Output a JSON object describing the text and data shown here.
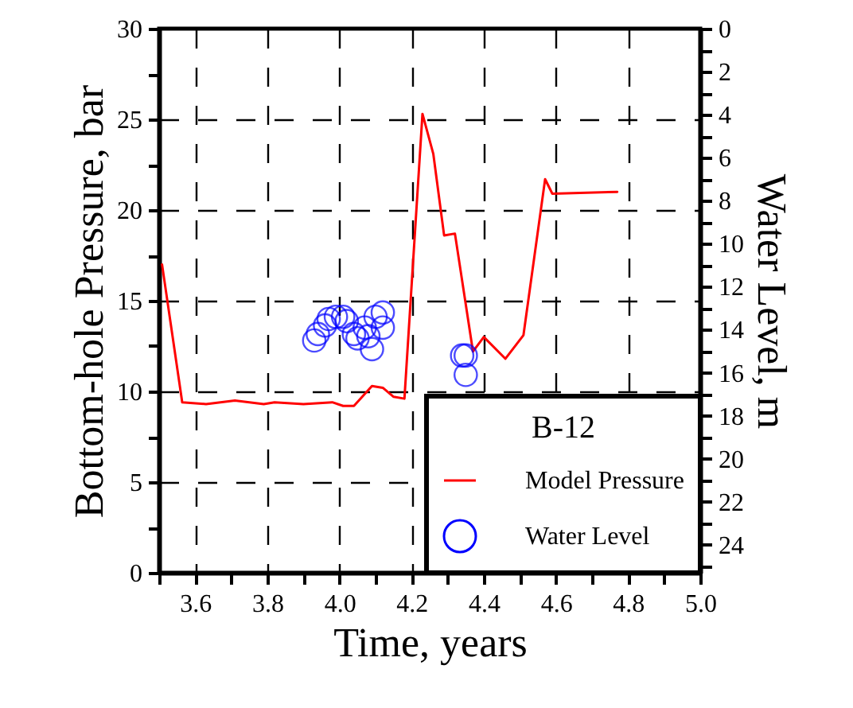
{
  "chart_data": {
    "type": "line",
    "xlabel": "Time, years",
    "ylabel": "Bottom-hole Pressure, bar",
    "y2label": "Water Level, m",
    "legend_title": "B-12",
    "legend": "bottom right",
    "grid": true,
    "xlim": [
      3.5,
      5.0
    ],
    "xticks": [
      {
        "value": 3.5,
        "label": null
      },
      3.6,
      {
        "value": 3.7,
        "label": null
      },
      3.8,
      {
        "value": 3.9,
        "label": null
      },
      {
        "value": 4.0,
        "label": "4.0"
      },
      {
        "value": 4.1,
        "label": null
      },
      4.2,
      {
        "value": 4.3,
        "label": null
      },
      4.4,
      {
        "value": 4.5,
        "label": null
      },
      4.6,
      {
        "value": 4.7,
        "label": null
      },
      4.8,
      {
        "value": 4.9,
        "label": null
      },
      {
        "value": 5.0,
        "label": "5.0"
      }
    ],
    "ylim": [
      0,
      30
    ],
    "yticks": [
      0,
      {
        "value": 2.5,
        "label": null
      },
      5,
      {
        "value": 7.5,
        "label": null
      },
      10,
      {
        "value": 12.5,
        "label": null
      },
      15,
      {
        "value": 17.5,
        "label": null
      },
      20,
      {
        "value": 22.5,
        "label": null
      },
      25,
      {
        "value": 27.5,
        "label": null
      },
      30
    ],
    "y2lim": [
      25.3,
      0
    ],
    "y2ticks": [
      0,
      {
        "value": 1,
        "label": null
      },
      2,
      {
        "value": 3,
        "label": null
      },
      4,
      {
        "value": 5,
        "label": null
      },
      6,
      {
        "value": 7,
        "label": null
      },
      8,
      {
        "value": 9,
        "label": null
      },
      10,
      {
        "value": 11,
        "label": null
      },
      12,
      {
        "value": 13,
        "label": null
      },
      14,
      {
        "value": 15,
        "label": null
      },
      16,
      {
        "value": 17,
        "label": null
      },
      18,
      {
        "value": 19,
        "label": null
      },
      20,
      {
        "value": 21,
        "label": null
      },
      22,
      {
        "value": 23,
        "label": null
      },
      24,
      {
        "value": 25,
        "label": null
      }
    ],
    "series": [
      {
        "name": "Model Pressure",
        "type": "line",
        "color": "#ff0000",
        "marker": "none",
        "line_style": "solid",
        "x": [
          3.508,
          3.564,
          3.63,
          3.71,
          3.79,
          3.82,
          3.9,
          3.98,
          4.01,
          4.04,
          4.09,
          4.12,
          4.15,
          4.18,
          4.23,
          4.26,
          4.29,
          4.32,
          4.37,
          4.4,
          4.46,
          4.51,
          4.57,
          4.59,
          4.77
        ],
        "values": [
          17.0,
          9.4,
          9.3,
          9.5,
          9.3,
          9.4,
          9.3,
          9.4,
          9.2,
          9.2,
          10.3,
          10.2,
          9.7,
          9.6,
          25.3,
          23.1,
          18.6,
          18.7,
          12.2,
          13.0,
          11.8,
          13.1,
          21.7,
          20.9,
          21.0
        ]
      },
      {
        "name": "Water Level",
        "type": "scatter",
        "axis": "y2",
        "color": "#0000ff",
        "marker": "circle",
        "x": [
          3.93,
          3.94,
          3.96,
          3.97,
          3.99,
          4.01,
          4.02,
          4.04,
          4.05,
          4.07,
          4.08,
          4.09,
          4.1,
          4.12,
          4.12,
          4.34,
          4.35,
          4.35
        ],
        "values": [
          14.5,
          14.2,
          13.8,
          13.5,
          13.4,
          13.4,
          13.6,
          14.2,
          14.4,
          13.9,
          14.3,
          14.9,
          13.4,
          13.2,
          13.9,
          15.2,
          15.2,
          16.1
        ]
      }
    ]
  }
}
